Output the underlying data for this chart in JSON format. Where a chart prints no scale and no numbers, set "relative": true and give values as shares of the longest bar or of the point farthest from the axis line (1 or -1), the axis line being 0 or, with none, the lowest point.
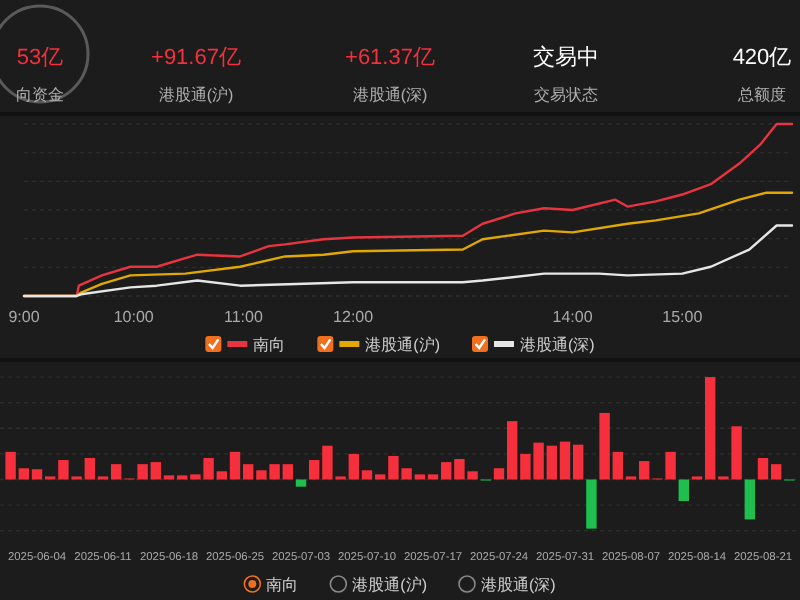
{
  "chart_data": [
    {
      "type": "other",
      "annotations": [
        "53亿",
        "向资金",
        "+91.67亿",
        "港股通(沪)",
        "+61.37亿",
        "港股通(深)",
        "交易中",
        "交易状态",
        "420亿",
        "总额度"
      ]
    },
    {
      "type": "line",
      "relative": true,
      "grid": "y",
      "legend": "bottom",
      "tick_labels": "x",
      "marker": "none",
      "line_style": "solid",
      "xlim": [
        9,
        16
      ],
      "xticks": [
        {
          "value": 9,
          "label": "9:00"
        },
        {
          "value": 10,
          "label": "10:00"
        },
        {
          "value": 11,
          "label": "11:00"
        },
        {
          "value": 12,
          "label": "12:00"
        },
        {
          "value": 14,
          "label": "14:00"
        },
        {
          "value": 15,
          "label": "15:00"
        }
      ],
      "series": [
        {
          "name": "南向",
          "color": "#e8343e",
          "x": [
            9,
            9.48,
            9.5,
            9.71,
            9.97,
            10.21,
            10.47,
            10.58,
            10.97,
            11.23,
            11.38,
            11.73,
            12,
            13,
            13.18,
            13.48,
            13.74,
            14,
            14.39,
            14.5,
            14.76,
            15,
            15.26,
            15.52,
            15.71,
            15.86,
            16
          ],
          "values": [
            0,
            0,
            0.06,
            0.12,
            0.17,
            0.17,
            0.22,
            0.24,
            0.23,
            0.29,
            0.3,
            0.33,
            0.34,
            0.35,
            0.42,
            0.48,
            0.51,
            0.5,
            0.56,
            0.52,
            0.55,
            0.59,
            0.65,
            0.77,
            0.88,
            1,
            1
          ]
        },
        {
          "name": "港股通(沪)",
          "color": "#e0a800",
          "x": [
            9,
            9.48,
            9.52,
            9.71,
            9.97,
            10.47,
            10.97,
            11.38,
            11.73,
            12,
            13,
            13.18,
            13.74,
            14,
            14.5,
            14.76,
            15.15,
            15.52,
            15.76,
            16
          ],
          "values": [
            0,
            0,
            0.02,
            0.07,
            0.12,
            0.13,
            0.17,
            0.23,
            0.24,
            0.26,
            0.27,
            0.33,
            0.38,
            0.37,
            0.42,
            0.44,
            0.48,
            0.56,
            0.6,
            0.6
          ]
        },
        {
          "name": "港股通(深)",
          "color": "#e6e6e6",
          "x": [
            9,
            9.48,
            9.52,
            9.97,
            10.21,
            10.58,
            10.97,
            11.48,
            12,
            13,
            13.18,
            13.74,
            14.24,
            14.5,
            15,
            15.26,
            15.61,
            15.86,
            16
          ],
          "values": [
            0,
            0,
            0.01,
            0.05,
            0.06,
            0.09,
            0.06,
            0.07,
            0.08,
            0.08,
            0.09,
            0.13,
            0.13,
            0.12,
            0.13,
            0.17,
            0.27,
            0.41,
            0.41
          ]
        }
      ]
    },
    {
      "type": "bar",
      "relative": true,
      "grid": "y",
      "legend": "bottom",
      "tick_labels": "x",
      "categories": [
        null,
        null,
        "2025-06-04",
        null,
        null,
        null,
        null,
        "2025-06-11",
        null,
        null,
        null,
        null,
        "2025-06-18",
        null,
        null,
        null,
        null,
        "2025-06-25",
        null,
        null,
        null,
        null,
        "2025-07-03",
        null,
        null,
        null,
        null,
        "2025-07-10",
        null,
        null,
        null,
        null,
        "2025-07-17",
        null,
        null,
        null,
        null,
        "2025-07-24",
        null,
        null,
        null,
        null,
        "2025-07-31",
        null,
        null,
        null,
        null,
        "2025-08-07",
        null,
        null,
        null,
        null,
        "2025-08-14",
        null,
        null,
        null,
        null,
        "2025-08-21",
        null,
        null
      ],
      "series": [
        {
          "name": "南向",
          "values": [
            0.27,
            0.11,
            0.1,
            0.03,
            0.19,
            0.03,
            0.21,
            0.03,
            0.15,
            0.01,
            0.15,
            0.17,
            0.04,
            0.04,
            0.05,
            0.21,
            0.08,
            0.27,
            0.15,
            0.09,
            0.15,
            0.15,
            -0.07,
            0.19,
            0.33,
            0.03,
            0.25,
            0.09,
            0.05,
            0.23,
            0.11,
            0.05,
            0.05,
            0.17,
            0.2,
            0.08,
            -0.01,
            0.11,
            0.57,
            0.25,
            0.36,
            0.33,
            0.37,
            0.34,
            -0.48,
            0.65,
            0.27,
            0.03,
            0.18,
            0.01,
            0.27,
            -0.21,
            0.03,
            1,
            0.03,
            0.52,
            -0.39,
            0.21,
            0.15,
            -0.01
          ],
          "colors": [
            "#f5303c",
            "#f5303c",
            "#f5303c",
            "#f5303c",
            "#f5303c",
            "#f5303c",
            "#f5303c",
            "#f5303c",
            "#f5303c",
            "#f5303c",
            "#f5303c",
            "#f5303c",
            "#f5303c",
            "#f5303c",
            "#f5303c",
            "#f5303c",
            "#f5303c",
            "#f5303c",
            "#f5303c",
            "#f5303c",
            "#f5303c",
            "#f5303c",
            "#1fbf4f",
            "#f5303c",
            "#f5303c",
            "#f5303c",
            "#f5303c",
            "#f5303c",
            "#f5303c",
            "#f5303c",
            "#f5303c",
            "#f5303c",
            "#f5303c",
            "#f5303c",
            "#f5303c",
            "#f5303c",
            "#1fbf4f",
            "#f5303c",
            "#f5303c",
            "#f5303c",
            "#f5303c",
            "#f5303c",
            "#f5303c",
            "#f5303c",
            "#1fbf4f",
            "#f5303c",
            "#f5303c",
            "#f5303c",
            "#f5303c",
            "#f5303c",
            "#f5303c",
            "#1fbf4f",
            "#f5303c",
            "#f5303c",
            "#f5303c",
            "#f5303c",
            "#1fbf4f",
            "#f5303c",
            "#f5303c",
            "#1fbf4f"
          ]
        },
        {
          "name": "港股通(沪)",
          "values": [
            null,
            null,
            null,
            null,
            null,
            null,
            null,
            null,
            null,
            null,
            null,
            null,
            null,
            null,
            null,
            null,
            null,
            null,
            null,
            null,
            null,
            null,
            null,
            null,
            null,
            null,
            null,
            null,
            null,
            null,
            null,
            null,
            null,
            null,
            null,
            null,
            null,
            null,
            null,
            null,
            null,
            null,
            null,
            null,
            null,
            null,
            null,
            null,
            null,
            null,
            null,
            null,
            null,
            null,
            null,
            null,
            null,
            null,
            null,
            null
          ]
        },
        {
          "name": "港股通(深)",
          "values": [
            null,
            null,
            null,
            null,
            null,
            null,
            null,
            null,
            null,
            null,
            null,
            null,
            null,
            null,
            null,
            null,
            null,
            null,
            null,
            null,
            null,
            null,
            null,
            null,
            null,
            null,
            null,
            null,
            null,
            null,
            null,
            null,
            null,
            null,
            null,
            null,
            null,
            null,
            null,
            null,
            null,
            null,
            null,
            null,
            null,
            null,
            null,
            null,
            null,
            null,
            null,
            null,
            null,
            null,
            null,
            null,
            null,
            null,
            null,
            null
          ]
        }
      ]
    }
  ]
}
